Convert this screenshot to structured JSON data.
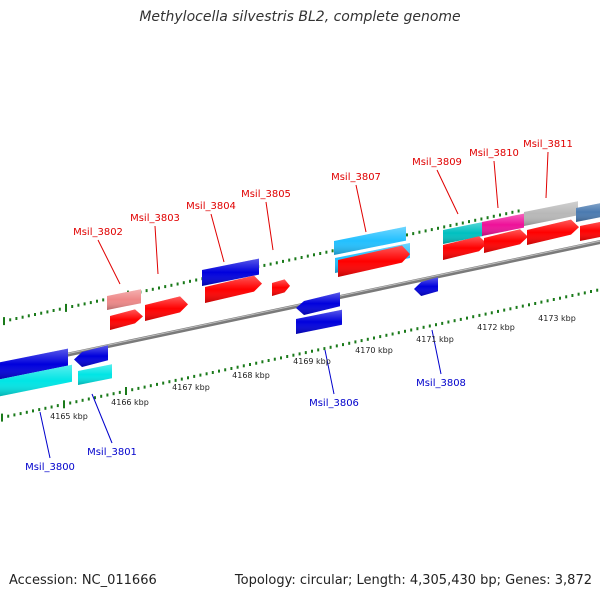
{
  "title": "Methylocella silvestris BL2, complete genome",
  "footer": {
    "accession": "Accession: NC_011666",
    "stats": "Topology: circular; Length: 4,305,430 bp; Genes: 3,872"
  },
  "colors": {
    "forward_label": "#e00000",
    "reverse_label": "#0000cc",
    "tick": "#1a7a1a",
    "backbone": "#808080"
  },
  "scale_ticks": [
    "4165 kbp",
    "4166 kbp",
    "4167 kbp",
    "4168 kbp",
    "4169 kbp",
    "4170 kbp",
    "4171 kbp",
    "4172 kbp",
    "4173 kbp"
  ],
  "genes": [
    {
      "id": "Msil_3800",
      "strand": "reverse",
      "color": "#0000dd"
    },
    {
      "id": "Msil_3801",
      "strand": "reverse",
      "color": "#0000dd"
    },
    {
      "id": "Msil_3802",
      "strand": "forward",
      "color": "#ff0000"
    },
    {
      "id": "Msil_3803",
      "strand": "forward",
      "color": "#ff0000"
    },
    {
      "id": "Msil_3804",
      "strand": "forward",
      "color": "#ff0000"
    },
    {
      "id": "Msil_3805",
      "strand": "forward",
      "color": "#ff0000"
    },
    {
      "id": "Msil_3806",
      "strand": "reverse",
      "color": "#0000dd"
    },
    {
      "id": "Msil_3807",
      "strand": "forward",
      "color": "#ff0000"
    },
    {
      "id": "Msil_3808",
      "strand": "reverse",
      "color": "#0000dd"
    },
    {
      "id": "Msil_3809",
      "strand": "forward",
      "color": "#ff0000"
    },
    {
      "id": "Msil_3810",
      "strand": "forward",
      "color": "#ff0000"
    },
    {
      "id": "Msil_3811",
      "strand": "forward",
      "color": "#ff0000"
    }
  ]
}
